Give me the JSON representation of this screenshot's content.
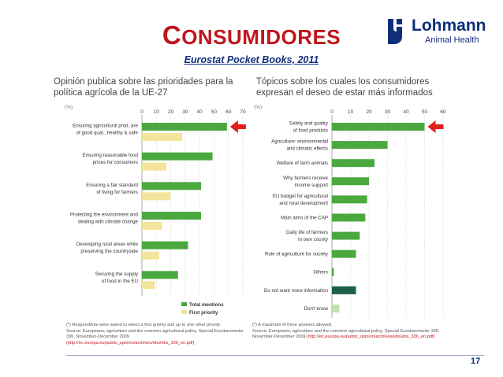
{
  "header": {
    "title_first": "C",
    "title_rest": "ONSUMIDORES",
    "subtitle": "Eurostat Pocket Books, 2011"
  },
  "logo": {
    "name": "Lohmann",
    "subtitle": "Animal Health"
  },
  "left_heading": "Opinión publica sobre las prioridades para la política agrícola de la UE-27",
  "right_heading": "Tópicos sobre los cuales los consumidores expresan el deseo de estar más informados",
  "colors": {
    "total_mentions": "#4aa83e",
    "first_priority": "#f2e59b",
    "dark_bar": "#1c5f4b",
    "light_bar": "#bfe0b3",
    "accent_red": "#e0201c",
    "title_red": "#c0161c",
    "navy": "#0f2f7a"
  },
  "footnotes": {
    "left_note": "(*) Respondents were asked to select a first priority and up to one other priority.",
    "left_source": "Source: Europeans, agriculture and the common agricultural policy, Special Eurobarometer 336, November-December 2009",
    "left_link": "(http://ec.europa.eu/public_opinion/archives/ebs/ebs_336_en.pdf)",
    "right_note": "(*) A maximum of three answers allowed.",
    "right_source": "Source: Europeans, agriculture and the common agricultural policy, Special Eurobarometer 336, November-December 2009",
    "right_link": "(http://ec.europa.eu/public_opinion/archives/ebs/ebs_336_en.pdf)"
  },
  "page_number": "17",
  "chart_data": [
    {
      "type": "bar",
      "orientation": "horizontal",
      "unit_label": "(%)",
      "xlim": [
        0,
        70
      ],
      "ticks": [
        0,
        10,
        20,
        30,
        40,
        50,
        60,
        70
      ],
      "categories": [
        [
          "Ensuring agricultural prod. are",
          "of good qual., healthy & safe"
        ],
        [
          "Ensuring reasonable food",
          "prices for consumers"
        ],
        [
          "Ensuring a fair standard",
          "of living for farmers"
        ],
        [
          "Protecting the environment and",
          "dealing with climate change"
        ],
        [
          "Developing rural areas while",
          "preserving the countryside"
        ],
        [
          "Securing the supply",
          "of food in the EU"
        ]
      ],
      "series": [
        {
          "name": "Total mentions",
          "values": [
            59,
            49,
            41,
            41,
            32,
            25
          ]
        },
        {
          "name": "First priority",
          "values": [
            28,
            17,
            20,
            14,
            12,
            9
          ]
        }
      ],
      "legend": "bottom-right",
      "highlight": "arrow on first category"
    },
    {
      "type": "bar",
      "orientation": "horizontal",
      "unit_label": "(%)",
      "xlim": [
        0,
        60
      ],
      "ticks": [
        0,
        10,
        20,
        30,
        40,
        50,
        60
      ],
      "categories": [
        [
          "Safety and quality",
          "of food products"
        ],
        [
          "Agriculture: environmental",
          "and climatic effects"
        ],
        [
          "Welfare of farm animals"
        ],
        [
          "Why farmers receive",
          "income support"
        ],
        [
          "EU budget for agricultural",
          "and rural development"
        ],
        [
          "Main aims of the CAP"
        ],
        [
          "Daily life of farmers",
          "in own county"
        ],
        [
          "Role of agriculture for society"
        ],
        [
          "Others"
        ],
        [
          "Do not want more information"
        ],
        [
          "Don't know"
        ]
      ],
      "values": [
        50,
        30,
        23,
        20,
        19,
        18,
        15,
        13,
        1,
        13,
        4
      ],
      "bar_styles": [
        "normal",
        "normal",
        "normal",
        "normal",
        "normal",
        "normal",
        "normal",
        "normal",
        "normal",
        "dark",
        "light"
      ],
      "highlight": "arrow on first category"
    }
  ]
}
